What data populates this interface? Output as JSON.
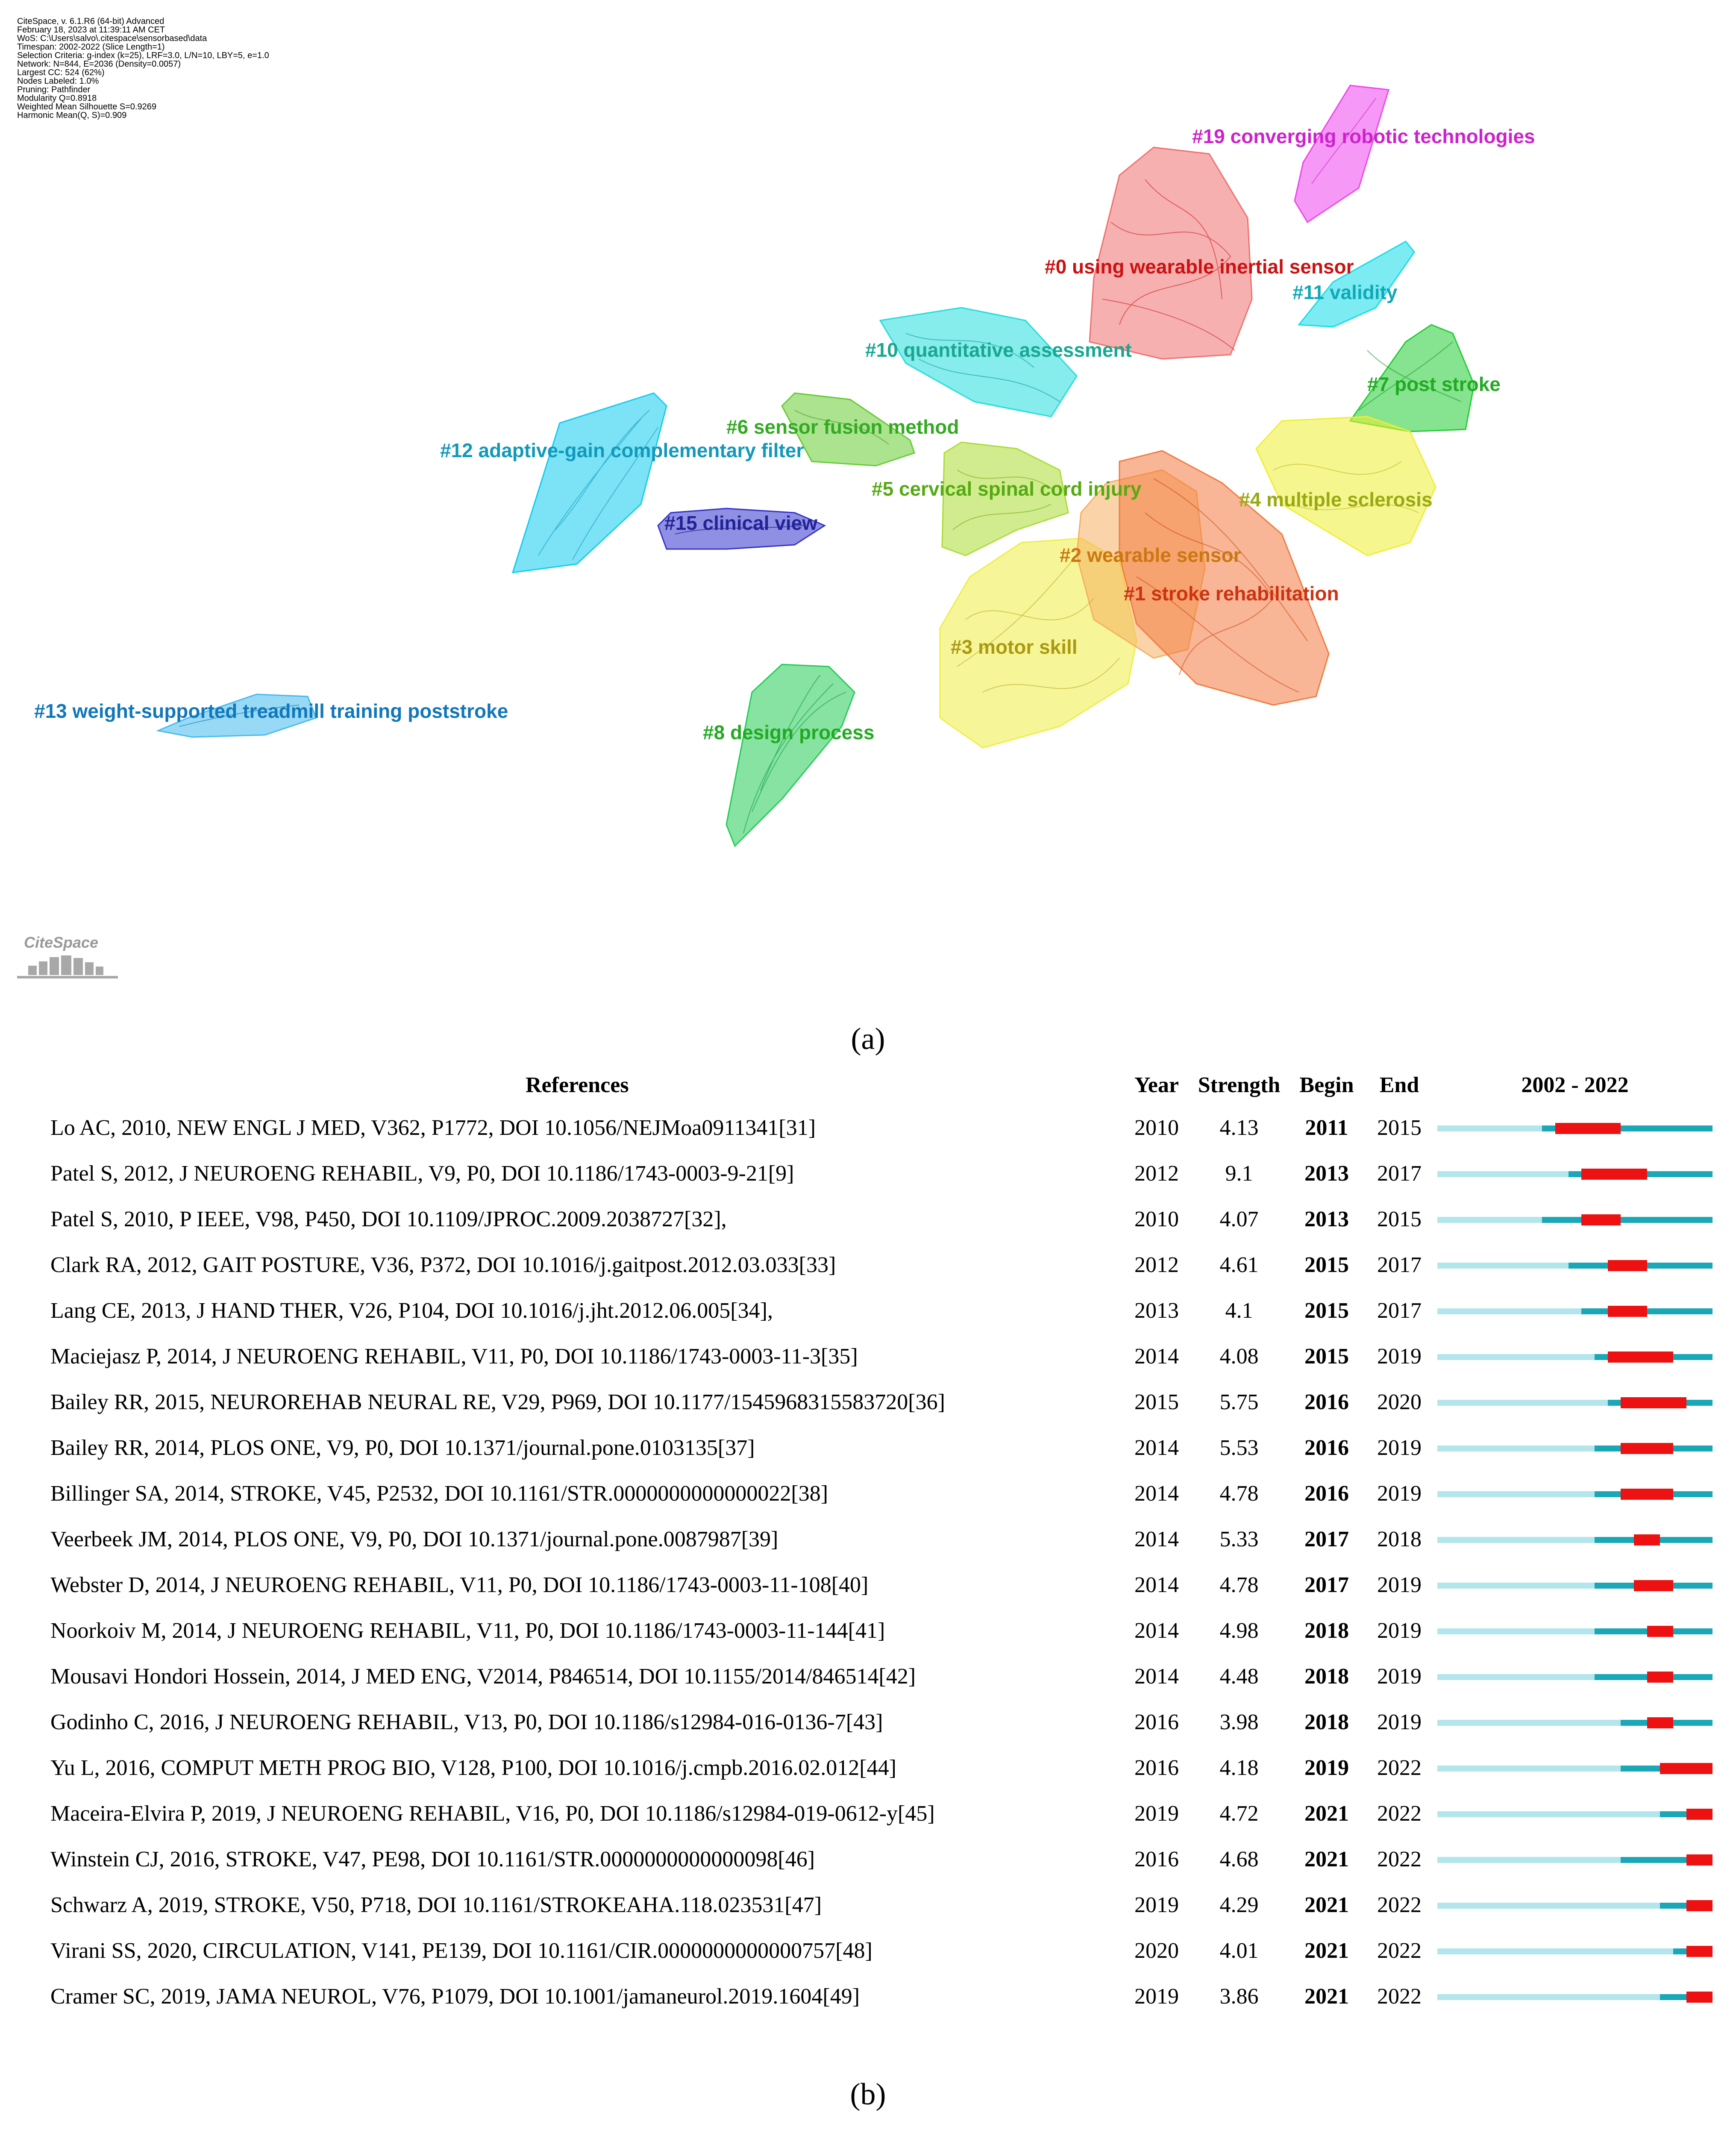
{
  "figure_a": {
    "info_lines": [
      "CiteSpace, v. 6.1.R6 (64-bit) Advanced",
      "February 18, 2023 at 11:39:11 AM CET",
      "WoS: C:\\Users\\salvo\\.citespace\\sensorbased\\data",
      "Timespan: 2002-2022 (Slice Length=1)",
      "Selection Criteria: g-index (k=25), LRF=3.0, L/N=10, LBY=5, e=1.0",
      "Network: N=844, E=2036 (Density=0.0057)",
      "Largest CC: 524 (62%)",
      "Nodes Labeled: 1.0%",
      "Pruning: Pathfinder",
      "Modularity Q=0.8918",
      "Weighted Mean Silhouette S=0.9269",
      "Harmonic Mean(Q, S)=0.909"
    ],
    "clusters": [
      {
        "id": "c19",
        "label": "#19 converging robotic technologies",
        "fill": "#ee44ee",
        "text_color": "#cc22cc"
      },
      {
        "id": "c0",
        "label": "#0 using wearable inertial sensor",
        "fill": "#f07070",
        "text_color": "#cc1111"
      },
      {
        "id": "c11",
        "label": "#11 validity",
        "fill": "#11dde8",
        "text_color": "#11a8b8"
      },
      {
        "id": "c10",
        "label": "#10 quantitative assessment",
        "fill": "#22dddd",
        "text_color": "#18a890"
      },
      {
        "id": "c7",
        "label": "#7 post stroke",
        "fill": "#22cc33",
        "text_color": "#22aa22"
      },
      {
        "id": "c6",
        "label": "#6 sensor fusion method",
        "fill": "#66cc33",
        "text_color": "#33aa22"
      },
      {
        "id": "c12",
        "label": "#12 adaptive-gain complementary filter",
        "fill": "#11ccee",
        "text_color": "#1199bb"
      },
      {
        "id": "c5",
        "label": "#5 cervical spinal cord injury",
        "fill": "#aadd33",
        "text_color": "#55aa11"
      },
      {
        "id": "c4",
        "label": "#4 multiple sclerosis",
        "fill": "#eeee33",
        "text_color": "#99aa11"
      },
      {
        "id": "c15",
        "label": "#15 clinical view",
        "fill": "#3333cc",
        "text_color": "#222299"
      },
      {
        "id": "c2",
        "label": "#2 wearable sensor",
        "fill": "#f5b060",
        "text_color": "#cc7711"
      },
      {
        "id": "c1",
        "label": "#1 stroke rehabilitation",
        "fill": "#f27a40",
        "text_color": "#cc3311"
      },
      {
        "id": "c3",
        "label": "#3 motor skill",
        "fill": "#eeee44",
        "text_color": "#aa9911"
      },
      {
        "id": "c13",
        "label": "#13 weight-supported treadmill training poststroke",
        "fill": "#44bbee",
        "text_color": "#1177bb"
      },
      {
        "id": "c8",
        "label": "#8 design process",
        "fill": "#22cc55",
        "text_color": "#22aa22"
      }
    ],
    "logo_text": "CiteSpace",
    "caption": "(a)"
  },
  "figure_b": {
    "headers": {
      "references": "References",
      "year": "Year",
      "strength": "Strength",
      "begin": "Begin",
      "end": "End",
      "period": "2002 - 2022"
    },
    "period_start": 2002,
    "period_end": 2022,
    "colors": {
      "inactive": "#b3e5ec",
      "active": "#1aa7b7",
      "burst": "#ee1111"
    },
    "rows": [
      {
        "ref": "Lo AC, 2010, NEW ENGL J MED, V362, P1772, DOI 10.1056/NEJMoa0911341[31]",
        "year": "2010",
        "strength": "4.13",
        "begin": "2011",
        "end": "2015"
      },
      {
        "ref": "Patel S, 2012, J NEUROENG REHABIL, V9, P0, DOI 10.1186/1743-0003-9-21[9]",
        "year": "2012",
        "strength": "9.1",
        "begin": "2013",
        "end": "2017"
      },
      {
        "ref": "Patel S, 2010, P IEEE, V98, P450, DOI 10.1109/JPROC.2009.2038727[32],",
        "year": "2010",
        "strength": "4.07",
        "begin": "2013",
        "end": "2015"
      },
      {
        "ref": "Clark RA, 2012, GAIT POSTURE, V36, P372, DOI 10.1016/j.gaitpost.2012.03.033[33]",
        "year": "2012",
        "strength": "4.61",
        "begin": "2015",
        "end": "2017"
      },
      {
        "ref": "Lang CE, 2013, J HAND THER, V26, P104, DOI 10.1016/j.jht.2012.06.005[34],",
        "year": "2013",
        "strength": "4.1",
        "begin": "2015",
        "end": "2017"
      },
      {
        "ref": "Maciejasz P, 2014, J NEUROENG REHABIL, V11, P0, DOI 10.1186/1743-0003-11-3[35]",
        "year": "2014",
        "strength": "4.08",
        "begin": "2015",
        "end": "2019"
      },
      {
        "ref": "Bailey RR, 2015, NEUROREHAB NEURAL RE, V29, P969, DOI 10.1177/1545968315583720[36]",
        "year": "2015",
        "strength": "5.75",
        "begin": "2016",
        "end": "2020"
      },
      {
        "ref": "Bailey RR, 2014, PLOS ONE, V9, P0, DOI 10.1371/journal.pone.0103135[37]",
        "year": "2014",
        "strength": "5.53",
        "begin": "2016",
        "end": "2019"
      },
      {
        "ref": "Billinger SA, 2014, STROKE, V45, P2532, DOI 10.1161/STR.0000000000000022[38]",
        "year": "2014",
        "strength": "4.78",
        "begin": "2016",
        "end": "2019"
      },
      {
        "ref": "Veerbeek JM, 2014, PLOS ONE, V9, P0, DOI 10.1371/journal.pone.0087987[39]",
        "year": "2014",
        "strength": "5.33",
        "begin": "2017",
        "end": "2018"
      },
      {
        "ref": "Webster D, 2014, J NEUROENG REHABIL, V11, P0, DOI 10.1186/1743-0003-11-108[40]",
        "year": "2014",
        "strength": "4.78",
        "begin": "2017",
        "end": "2019"
      },
      {
        "ref": "Noorkoiv M, 2014, J NEUROENG REHABIL, V11, P0, DOI 10.1186/1743-0003-11-144[41]",
        "year": "2014",
        "strength": "4.98",
        "begin": "2018",
        "end": "2019"
      },
      {
        "ref": "Mousavi Hondori Hossein, 2014, J MED ENG, V2014, P846514, DOI 10.1155/2014/846514[42]",
        "year": "2014",
        "strength": "4.48",
        "begin": "2018",
        "end": "2019"
      },
      {
        "ref": "Godinho C, 2016, J NEUROENG REHABIL, V13, P0, DOI 10.1186/s12984-016-0136-7[43]",
        "year": "2016",
        "strength": "3.98",
        "begin": "2018",
        "end": "2019"
      },
      {
        "ref": "Yu L, 2016, COMPUT METH PROG BIO, V128, P100, DOI 10.1016/j.cmpb.2016.02.012[44]",
        "year": "2016",
        "strength": "4.18",
        "begin": "2019",
        "end": "2022"
      },
      {
        "ref": "Maceira-Elvira P, 2019, J NEUROENG REHABIL, V16, P0, DOI 10.1186/s12984-019-0612-y[45]",
        "year": "2019",
        "strength": "4.72",
        "begin": "2021",
        "end": "2022"
      },
      {
        "ref": "Winstein CJ, 2016, STROKE, V47, PE98, DOI 10.1161/STR.0000000000000098[46]",
        "year": "2016",
        "strength": "4.68",
        "begin": "2021",
        "end": "2022"
      },
      {
        "ref": "Schwarz A, 2019, STROKE, V50, P718, DOI 10.1161/STROKEAHA.118.023531[47]",
        "year": "2019",
        "strength": "4.29",
        "begin": "2021",
        "end": "2022"
      },
      {
        "ref": "Virani SS, 2020, CIRCULATION, V141, PE139, DOI 10.1161/CIR.0000000000000757[48]",
        "year": "2020",
        "strength": "4.01",
        "begin": "2021",
        "end": "2022"
      },
      {
        "ref": "Cramer SC, 2019, JAMA NEUROL, V76, P1079, DOI 10.1001/jamaneurol.2019.1604[49]",
        "year": "2019",
        "strength": "3.86",
        "begin": "2021",
        "end": "2022"
      }
    ],
    "caption": "(b)"
  }
}
